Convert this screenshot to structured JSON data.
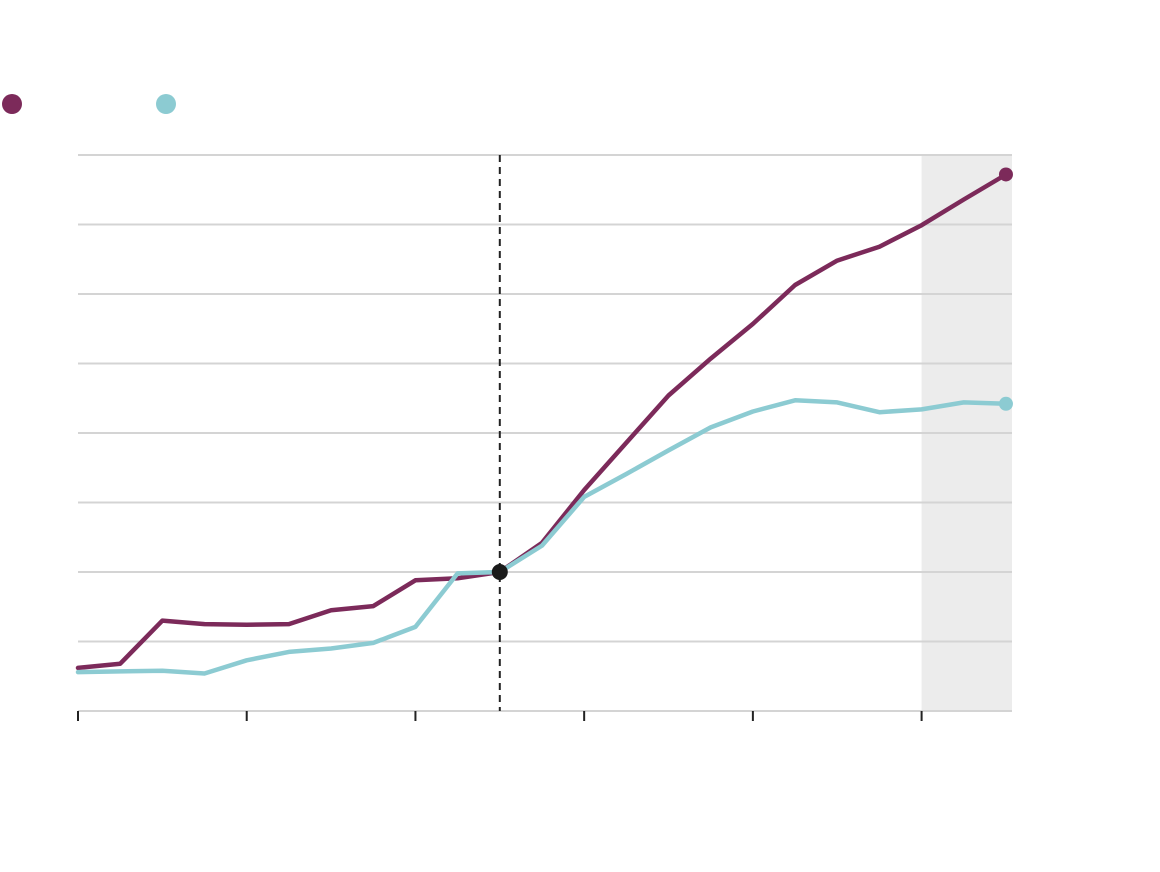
{
  "chart_data": {
    "type": "line",
    "title": "",
    "xlabel": "",
    "ylabel": "",
    "xlim": [
      0,
      22.2
    ],
    "ylim": [
      0,
      8
    ],
    "x_ticks": [
      0,
      4,
      8,
      12,
      16,
      20
    ],
    "y_gridlines": [
      1,
      2,
      3,
      4,
      5,
      6,
      7,
      8
    ],
    "grid": true,
    "reference_line_x": 10,
    "reference_point": {
      "x": 10,
      "y": 2
    },
    "shaded_region": {
      "x_start": 20,
      "x_end": 22.2,
      "color": "#ececec"
    },
    "legend": {
      "position": "top-left"
    },
    "series": [
      {
        "color": "#7c2a5a",
        "x": [
          0,
          1,
          2,
          3,
          4,
          5,
          6,
          7,
          8,
          9,
          10,
          11,
          12,
          13,
          14,
          15,
          16,
          17,
          18,
          19,
          20,
          21,
          22
        ],
        "values": [
          0.62,
          0.68,
          1.3,
          1.25,
          1.24,
          1.25,
          1.45,
          1.51,
          1.88,
          1.91,
          2.0,
          2.42,
          3.18,
          3.86,
          4.54,
          5.07,
          5.57,
          6.13,
          6.48,
          6.68,
          6.99,
          7.36,
          7.72
        ]
      },
      {
        "color": "#8ccbd2",
        "x": [
          0,
          1,
          2,
          3,
          4,
          5,
          6,
          7,
          8,
          9,
          10,
          11,
          12,
          13,
          14,
          15,
          16,
          17,
          18,
          19,
          20,
          21,
          22
        ],
        "values": [
          0.56,
          0.57,
          0.58,
          0.54,
          0.73,
          0.85,
          0.9,
          0.98,
          1.21,
          1.98,
          2.0,
          2.38,
          3.08,
          3.41,
          3.75,
          4.08,
          4.31,
          4.47,
          4.44,
          4.3,
          4.34,
          4.44,
          4.42
        ]
      }
    ]
  }
}
